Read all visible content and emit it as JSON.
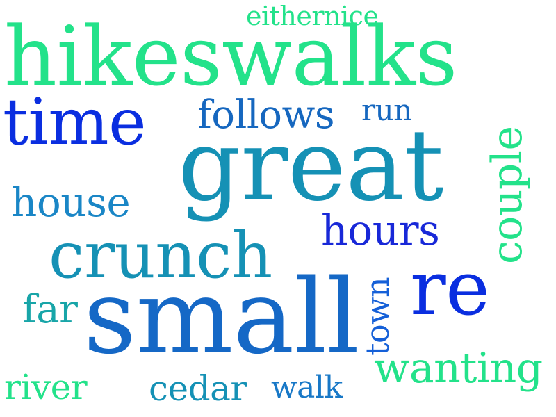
{
  "palette": {
    "green": "#23e28a",
    "teal_green": "#18c79a",
    "teal": "#1591b5",
    "mid_blue": "#1878c7",
    "blue": "#1560d8",
    "royal_blue": "#0a2ee0",
    "background": "#ffffff"
  },
  "words": [
    {
      "text": "hikeswalks",
      "color": "#23e28a"
    },
    {
      "text": "eithernice",
      "color": "#23e28a"
    },
    {
      "text": "time",
      "color": "#0a2ee0"
    },
    {
      "text": "follows",
      "color": "#1667bf"
    },
    {
      "text": "run",
      "color": "#1667bf"
    },
    {
      "text": "great",
      "color": "#1591b5"
    },
    {
      "text": "couple",
      "color": "#23e28a"
    },
    {
      "text": "house",
      "color": "#1a86c6"
    },
    {
      "text": "hours",
      "color": "#1828d8"
    },
    {
      "text": "crunch",
      "color": "#1591b5"
    },
    {
      "text": "re",
      "color": "#0a2ee0"
    },
    {
      "text": "far",
      "color": "#18a5a8"
    },
    {
      "text": "small",
      "color": "#1568c6"
    },
    {
      "text": "town",
      "color": "#1560d8"
    },
    {
      "text": "wanting",
      "color": "#23e28a"
    },
    {
      "text": "river",
      "color": "#23e28a"
    },
    {
      "text": "cedar",
      "color": "#1591b5"
    },
    {
      "text": "walk",
      "color": "#1878c7"
    }
  ]
}
